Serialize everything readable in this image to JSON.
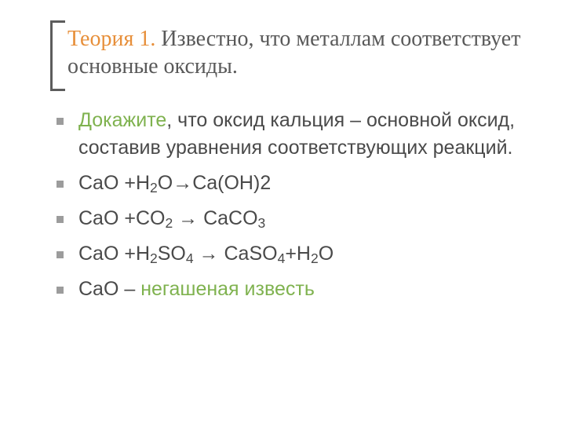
{
  "colors": {
    "background": "#ffffff",
    "title_accent": "#e78f3a",
    "title_text": "#595959",
    "bracket": "#5c5c5c",
    "body_text": "#4a4a4a",
    "bullet_square": "#9c9c9c",
    "green_accent": "#7fb24f"
  },
  "typography": {
    "title_font": "Times New Roman",
    "title_size_pt": 28,
    "body_font": "Segoe UI / Tahoma",
    "body_size_pt": 25
  },
  "title": {
    "accent": "Теория 1.",
    "rest": " Известно, что металлам соответствует основные оксиды."
  },
  "bullets": [
    {
      "prefix_accent": "Докажите",
      "rest": ", что оксид кальция – основной оксид, составив уравнения соответствующих реакций."
    },
    {
      "formula_parts": [
        "CaO +H",
        "2",
        "O→Ca(OH)",
        "2"
      ],
      "formula_sub_flags": [
        false,
        true,
        false,
        false
      ]
    },
    {
      "formula_parts": [
        "CaO +CO",
        "2",
        " → CaCO",
        "3"
      ],
      "formula_sub_flags": [
        false,
        true,
        false,
        true
      ]
    },
    {
      "formula_parts": [
        "CaO +H",
        "2",
        "SO",
        "4",
        " → CaSO",
        "4",
        "+H",
        "2",
        "O"
      ],
      "formula_sub_flags": [
        false,
        true,
        false,
        true,
        false,
        true,
        false,
        true,
        false
      ]
    },
    {
      "plain_prefix": "CaO – ",
      "suffix_accent": "негашеная известь"
    }
  ]
}
